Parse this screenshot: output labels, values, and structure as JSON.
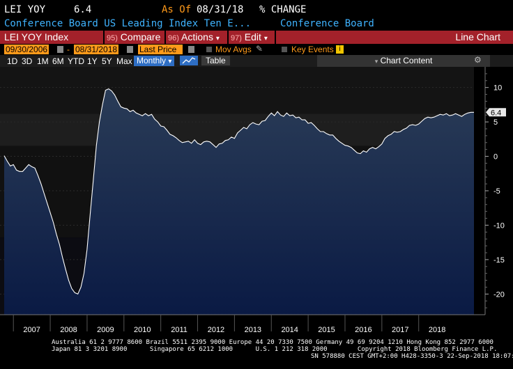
{
  "header": {
    "ticker": "LEI YOY",
    "value": "6.4",
    "as_of_label": "As Of",
    "as_of_date": "08/31/18",
    "unit": "% CHANGE",
    "description": "Conference Board US Leading Index Ten E...",
    "source": "Conference Board"
  },
  "toolbar_red": {
    "title": "LEI YOY Index",
    "compare_num": "95)",
    "compare": "Compare",
    "actions_num": "96)",
    "actions": "Actions",
    "edit_num": "97)",
    "edit": "Edit",
    "chart_type": "Line Chart"
  },
  "date_row": {
    "start": "09/30/2006",
    "end": "08/31/2018",
    "field": "Last Price",
    "mov_avgs": "Mov Avgs",
    "key_events": "Key Events"
  },
  "periods": [
    "1D",
    "3D",
    "1M",
    "6M",
    "YTD",
    "1Y",
    "5Y",
    "Max"
  ],
  "frequency": "Monthly",
  "table_label": "Table",
  "chart_content_label": "Chart Content",
  "colors": {
    "background": "#000000",
    "red_bar": "#a3212a",
    "orange": "#ff9a1a",
    "area_top": "#22344e",
    "area_bottom": "#0b1a3e",
    "line": "#ffffff",
    "accent_blue": "#3fb3ff"
  },
  "chart_data": {
    "type": "area",
    "title": "",
    "ylim": [
      -23,
      13
    ],
    "y_ticks": [
      10,
      5,
      0,
      -5,
      -10,
      -15,
      -20
    ],
    "x_labels": [
      "2007",
      "2008",
      "2009",
      "2010",
      "2011",
      "2012",
      "2013",
      "2014",
      "2015",
      "2016",
      "2017",
      "2018"
    ],
    "last_value_label": "6.4",
    "series": [
      {
        "values": [
          0.1,
          -0.7,
          -1.4,
          -1.2,
          -2.0,
          -2.2,
          -2.2,
          -1.7,
          -1.2,
          -1.5,
          -1.7,
          -2.8,
          -4.0,
          -5.4,
          -6.8,
          -8.2,
          -9.6,
          -11.3,
          -12.8,
          -14.7,
          -16.4,
          -18.0,
          -19.2,
          -19.8,
          -20.0,
          -19.0,
          -17.0,
          -13.5,
          -8.5,
          -3.5,
          1.5,
          5.0,
          7.5,
          9.6,
          9.8,
          9.5,
          8.9,
          8.0,
          7.2,
          7.0,
          6.9,
          6.5,
          6.7,
          6.3,
          6.1,
          5.9,
          6.2,
          5.9,
          6.1,
          5.4,
          5.0,
          4.4,
          4.3,
          3.8,
          3.2,
          3.0,
          2.7,
          2.3,
          2.0,
          2.1,
          2.2,
          1.9,
          2.4,
          1.9,
          1.7,
          2.1,
          2.2,
          2.1,
          1.7,
          1.3,
          1.8,
          1.9,
          2.3,
          2.4,
          2.8,
          2.6,
          3.4,
          3.8,
          4.2,
          4.0,
          4.6,
          4.9,
          4.7,
          4.6,
          5.1,
          5.2,
          5.8,
          6.3,
          5.9,
          6.5,
          6.0,
          5.8,
          6.3,
          5.9,
          6.0,
          5.6,
          5.7,
          5.3,
          5.3,
          4.8,
          4.9,
          4.5,
          4.0,
          3.6,
          3.6,
          3.3,
          3.1,
          3.1,
          2.6,
          2.2,
          1.9,
          1.6,
          1.5,
          1.3,
          0.9,
          0.5,
          0.4,
          0.8,
          0.6,
          1.1,
          1.3,
          1.1,
          1.4,
          1.8,
          2.6,
          3.0,
          3.2,
          3.6,
          3.5,
          3.6,
          3.9,
          4.1,
          4.5,
          4.6,
          4.5,
          4.7,
          5.1,
          5.5,
          5.7,
          5.6,
          5.7,
          5.9,
          6.1,
          6.0,
          6.2,
          5.9,
          6.0,
          6.2,
          6.0,
          5.8,
          6.1,
          6.3,
          6.4,
          6.4
        ]
      }
    ]
  },
  "footer": {
    "line1": "Australia 61 2 9777 8600 Brazil 5511 2395 9000 Europe 44 20 7330 7500 Germany 49 69 9204 1210 Hong Kong 852 2977 6000",
    "line2": "Japan 81 3 3201 8900      Singapore 65 6212 1000      U.S. 1 212 318 2000        Copyright 2018 Bloomberg Finance L.P.",
    "line3": "SN 578880 CEST GMT+2:00 H428-3350-3 22-Sep-2018 18:07:18"
  }
}
